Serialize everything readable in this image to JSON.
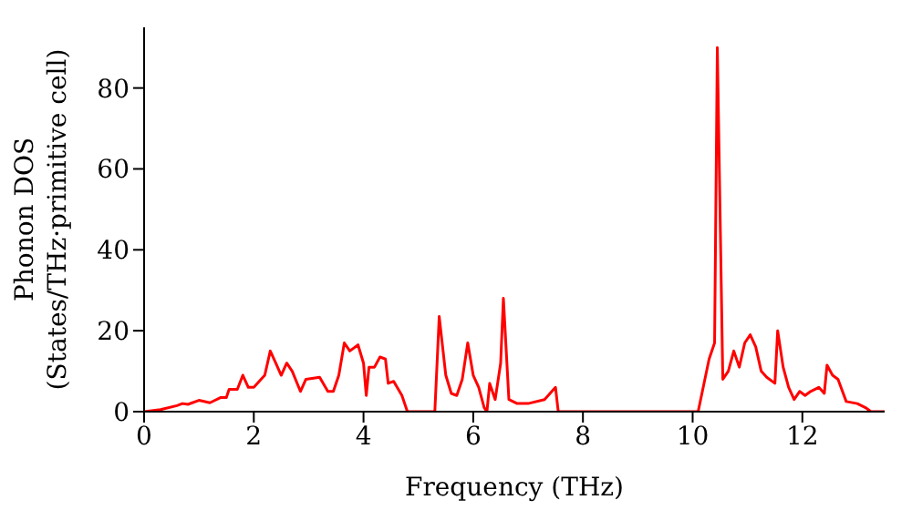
{
  "chart_data": {
    "type": "line",
    "xlabel": "Frequency (THz)",
    "ylabel": "Phonon DOS\n(States/THz·primitive cell)",
    "x": [
      0,
      0.3,
      0.6,
      0.7,
      0.8,
      1.0,
      1.2,
      1.4,
      1.5,
      1.55,
      1.7,
      1.8,
      1.9,
      2.0,
      2.2,
      2.3,
      2.4,
      2.5,
      2.6,
      2.7,
      2.85,
      2.95,
      3.2,
      3.35,
      3.45,
      3.55,
      3.65,
      3.75,
      3.9,
      4.0,
      4.05,
      4.1,
      4.2,
      4.3,
      4.4,
      4.45,
      4.55,
      4.7,
      4.8,
      5.3,
      5.38,
      5.5,
      5.6,
      5.7,
      5.8,
      5.9,
      6.0,
      6.1,
      6.2,
      6.25,
      6.3,
      6.4,
      6.5,
      6.55,
      6.65,
      6.8,
      7.0,
      7.3,
      7.5,
      7.55,
      10.1,
      10.3,
      10.4,
      10.45,
      10.55,
      10.65,
      10.75,
      10.85,
      10.95,
      11.05,
      11.15,
      11.25,
      11.35,
      11.5,
      11.55,
      11.65,
      11.75,
      11.85,
      11.95,
      12.05,
      12.15,
      12.3,
      12.4,
      12.45,
      12.55,
      12.65,
      12.8,
      13.0,
      13.15,
      13.25,
      13.5
    ],
    "series": [
      {
        "color": "#ff0000",
        "values": [
          0,
          0.5,
          1.5,
          2,
          1.8,
          2.8,
          2.2,
          3.5,
          3.5,
          5.5,
          5.5,
          9,
          6,
          6,
          9,
          15,
          12,
          9,
          12,
          10,
          5,
          8,
          8.5,
          5,
          5,
          9,
          17,
          15,
          16.5,
          12,
          4,
          11,
          11,
          13.5,
          13,
          7,
          7.5,
          4,
          0,
          0,
          23.5,
          9,
          4.5,
          4,
          8,
          17,
          9,
          6,
          1,
          0,
          7,
          3,
          12,
          28,
          3,
          2,
          2,
          3,
          6,
          0,
          0,
          13,
          17,
          90,
          8,
          10,
          15,
          11,
          17,
          19,
          16,
          10,
          8.5,
          7,
          20,
          11,
          6,
          3,
          5,
          4,
          5,
          6,
          4.5,
          11.5,
          9,
          8,
          2.5,
          2,
          1,
          0,
          0
        ]
      }
    ],
    "xlim": [
      0,
      13.5
    ],
    "xticks": [
      0,
      2,
      4,
      6,
      8,
      10,
      12
    ],
    "ylim": [
      0,
      95
    ],
    "yticks": [
      0,
      20,
      40,
      60,
      80
    ],
    "grid": false,
    "legend": false,
    "marker": "none",
    "line_style": "solid"
  }
}
